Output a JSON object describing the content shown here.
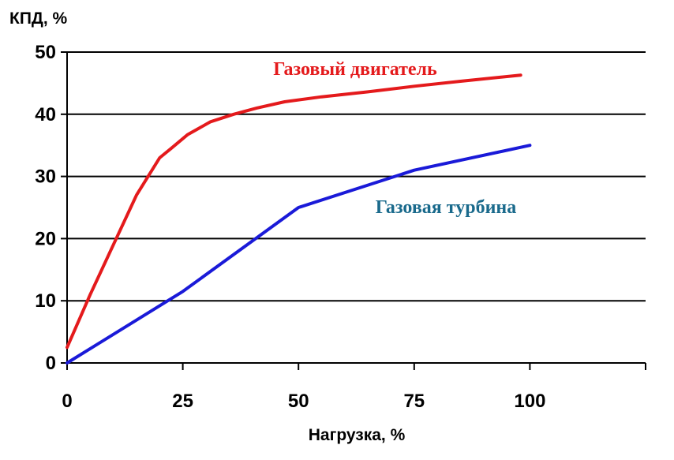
{
  "chart_data": {
    "type": "line",
    "title": "",
    "xlabel": "Нагрузка, %",
    "ylabel": "КПД, %",
    "xlim": [
      0,
      125
    ],
    "ylim": [
      0,
      50
    ],
    "xticks": [
      0,
      25,
      50,
      75,
      100
    ],
    "xtick_labels": [
      "0",
      "25",
      "50",
      "75",
      "100"
    ],
    "yticks": [
      0,
      10,
      20,
      30,
      40,
      50
    ],
    "ytick_labels": [
      "0",
      "10",
      "20",
      "30",
      "40",
      "50"
    ],
    "grid": "horizontal",
    "series": [
      {
        "name": "Газовый двигатель",
        "color": "#e41a1c",
        "x": [
          0,
          5,
          10,
          15,
          20,
          22.5,
          26,
          31,
          36,
          41,
          47,
          55,
          65,
          75,
          85,
          98
        ],
        "y": [
          2.5,
          11,
          19,
          27,
          33,
          34.5,
          36.7,
          38.8,
          40,
          41,
          42,
          42.8,
          43.6,
          44.5,
          45.3,
          46.3
        ]
      },
      {
        "name": "Газовая турбина",
        "color": "#1a1ad8",
        "x": [
          0,
          25,
          50,
          75,
          100
        ],
        "y": [
          0,
          11.5,
          25,
          31,
          35
        ]
      }
    ]
  }
}
